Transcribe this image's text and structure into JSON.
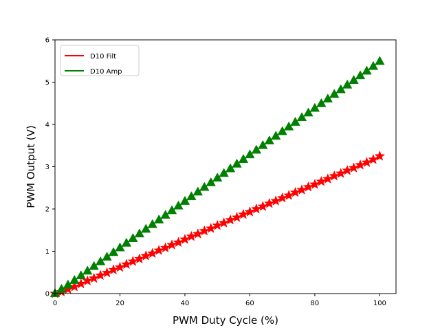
{
  "chart_data": {
    "type": "line",
    "title": "",
    "xlabel": "PWM Duty Cycle (%)",
    "ylabel": "PWM Output (V)",
    "xlim": [
      0,
      105
    ],
    "ylim": [
      0,
      6
    ],
    "xticks": [
      0,
      20,
      40,
      60,
      80,
      100
    ],
    "yticks": [
      0,
      1,
      2,
      3,
      4,
      5,
      6
    ],
    "grid": false,
    "legend_position": "upper-left",
    "series": [
      {
        "name": "D10 Filt",
        "color": "#ff0000",
        "marker": "star",
        "x": [
          0,
          2,
          4,
          6,
          8,
          10,
          12,
          14,
          16,
          18,
          20,
          22,
          24,
          26,
          28,
          30,
          32,
          34,
          36,
          38,
          40,
          42,
          44,
          46,
          48,
          50,
          52,
          54,
          56,
          58,
          60,
          62,
          64,
          66,
          68,
          70,
          72,
          74,
          76,
          78,
          80,
          82,
          84,
          86,
          88,
          90,
          92,
          94,
          96,
          98,
          100
        ],
        "y": [
          0.0,
          0.04,
          0.1,
          0.16,
          0.23,
          0.3,
          0.36,
          0.43,
          0.49,
          0.56,
          0.62,
          0.69,
          0.76,
          0.82,
          0.89,
          0.95,
          1.02,
          1.08,
          1.15,
          1.21,
          1.28,
          1.35,
          1.41,
          1.48,
          1.54,
          1.61,
          1.67,
          1.74,
          1.8,
          1.87,
          1.93,
          2.0,
          2.06,
          2.13,
          2.19,
          2.26,
          2.32,
          2.39,
          2.45,
          2.52,
          2.58,
          2.65,
          2.71,
          2.78,
          2.84,
          2.91,
          2.97,
          3.04,
          3.1,
          3.17,
          3.25
        ]
      },
      {
        "name": "D10 Amp",
        "color": "#008000",
        "marker": "triangle-up",
        "x": [
          0,
          2,
          4,
          6,
          8,
          10,
          12,
          14,
          16,
          18,
          20,
          22,
          24,
          26,
          28,
          30,
          32,
          34,
          36,
          38,
          40,
          42,
          44,
          46,
          48,
          50,
          52,
          54,
          56,
          58,
          60,
          62,
          64,
          66,
          68,
          70,
          72,
          74,
          76,
          78,
          80,
          82,
          84,
          86,
          88,
          90,
          92,
          94,
          96,
          98,
          100
        ],
        "y": [
          0.0,
          0.1,
          0.2,
          0.31,
          0.42,
          0.53,
          0.64,
          0.75,
          0.86,
          0.97,
          1.08,
          1.19,
          1.3,
          1.41,
          1.52,
          1.63,
          1.74,
          1.85,
          1.96,
          2.07,
          2.18,
          2.29,
          2.4,
          2.51,
          2.62,
          2.73,
          2.84,
          2.95,
          3.06,
          3.17,
          3.28,
          3.39,
          3.5,
          3.61,
          3.72,
          3.83,
          3.94,
          4.05,
          4.16,
          4.27,
          4.38,
          4.49,
          4.6,
          4.71,
          4.82,
          4.93,
          5.04,
          5.15,
          5.26,
          5.37,
          5.49
        ]
      }
    ]
  }
}
